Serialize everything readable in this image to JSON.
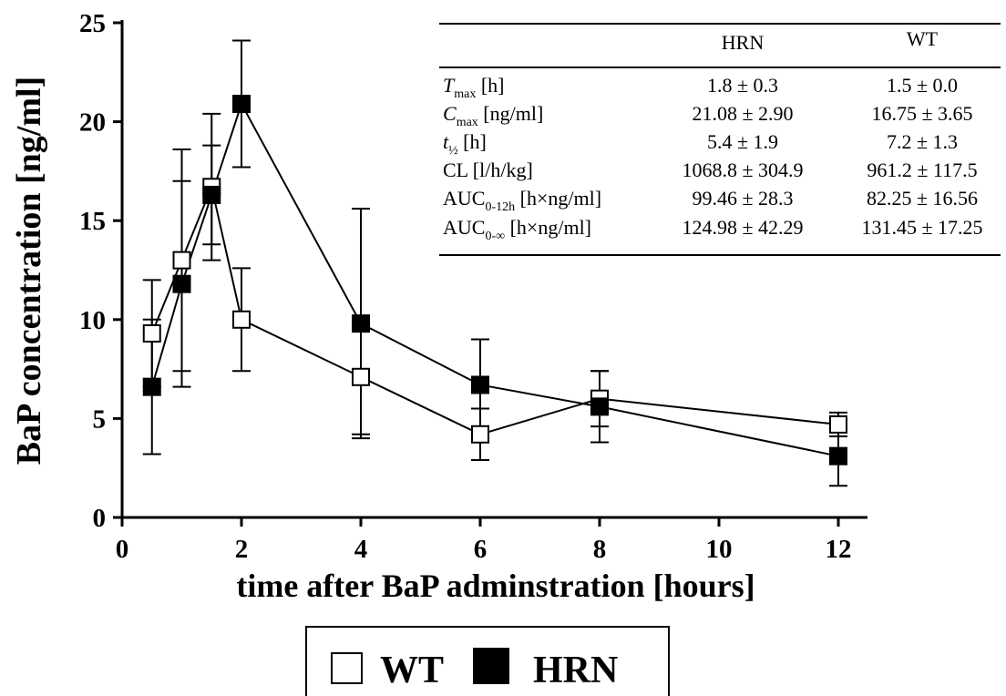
{
  "chart_data": {
    "type": "line",
    "xlabel": "time after BaP adminstration [hours]",
    "ylabel": "BaP concentration [ng/ml]",
    "x_ticks": [
      0,
      2,
      4,
      6,
      8,
      10,
      12
    ],
    "y_ticks": [
      0,
      5,
      10,
      15,
      20,
      25
    ],
    "xlim": [
      0,
      12.5
    ],
    "ylim": [
      0,
      25
    ],
    "grid": false,
    "legend_position": "bottom",
    "series": [
      {
        "name": "WT",
        "marker": "open-square",
        "color": "#ffffff",
        "x": [
          0.5,
          1,
          1.5,
          2,
          4,
          6,
          8,
          12
        ],
        "y": [
          9.3,
          13.0,
          16.7,
          10.0,
          7.1,
          4.2,
          6.0,
          4.7
        ],
        "err": [
          2.7,
          5.6,
          3.7,
          2.6,
          2.9,
          1.3,
          1.4,
          0.6
        ]
      },
      {
        "name": "HRN",
        "marker": "filled-square",
        "color": "#000000",
        "x": [
          0.5,
          1,
          1.5,
          2,
          4,
          6,
          8,
          12
        ],
        "y": [
          6.6,
          11.8,
          16.3,
          20.9,
          9.8,
          6.7,
          5.6,
          3.1
        ],
        "err": [
          3.4,
          5.2,
          2.5,
          3.2,
          5.8,
          2.3,
          1.8,
          1.5
        ]
      }
    ]
  },
  "table": {
    "headers": [
      "",
      "HRN",
      "WT"
    ],
    "rows": [
      {
        "label_main": "T",
        "label_sub": "max",
        "label_rest": " [h]",
        "italic": true,
        "hrn": "1.8 ± 0.3",
        "wt": "1.5 ± 0.0"
      },
      {
        "label_main": "C",
        "label_sub": "max",
        "label_rest": " [ng/ml]",
        "italic": true,
        "hrn": "21.08 ± 2.90",
        "wt": "16.75 ± 3.65"
      },
      {
        "label_main": "t",
        "label_sub": "½",
        "label_rest": " [h]",
        "italic": true,
        "hrn": "5.4 ± 1.9",
        "wt": "7.2 ± 1.3"
      },
      {
        "label_main": "CL [l/h/kg]",
        "label_sub": "",
        "label_rest": "",
        "italic": false,
        "hrn": "1068.8 ± 304.9",
        "wt": "961.2 ± 117.5"
      },
      {
        "label_main": "AUC",
        "label_sub": "0-12h",
        "label_rest": " [h×ng/ml]",
        "italic": false,
        "hrn": "99.46 ± 28.3",
        "wt": "82.25 ± 16.56"
      },
      {
        "label_main": "AUC",
        "label_sub": "0-∞",
        "label_rest": " [h×ng/ml]",
        "italic": false,
        "hrn": "124.98 ± 42.29",
        "wt": "131.45 ± 17.25"
      }
    ]
  },
  "legend": {
    "items": [
      {
        "label": "WT",
        "marker": "open-square"
      },
      {
        "label": "HRN",
        "marker": "filled-square"
      }
    ]
  }
}
